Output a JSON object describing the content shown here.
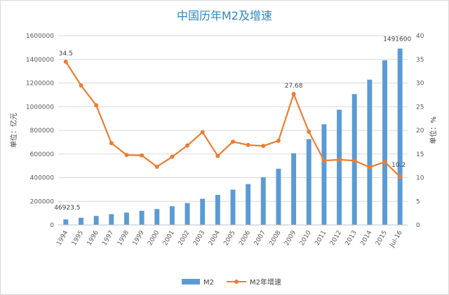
{
  "chart_data": {
    "type": "bar+line",
    "title": "中国历年M2及增速",
    "categories": [
      "1994",
      "1995",
      "1996",
      "1997",
      "1998",
      "1999",
      "2000",
      "2001",
      "2002",
      "2003",
      "2004",
      "2005",
      "2006",
      "2007",
      "2008",
      "2009",
      "2010",
      "2011",
      "2012",
      "2013",
      "2014",
      "2015",
      "Jul-16"
    ],
    "series": [
      {
        "name": "M2",
        "type": "bar",
        "axis": "left",
        "color": "#5b9bd5",
        "values": [
          46923.5,
          60750,
          76095,
          90995,
          104499,
          119898,
          134610,
          158302,
          185007,
          221223,
          254107,
          298756,
          345578,
          403442,
          475167,
          606225,
          725852,
          851591,
          974149,
          1106525,
          1228375,
          1392278,
          1491600
        ]
      },
      {
        "name": "M2年增速",
        "type": "line",
        "axis": "right",
        "color": "#ed7d31",
        "values": [
          34.5,
          29.5,
          25.3,
          17.3,
          14.8,
          14.7,
          12.3,
          14.4,
          16.8,
          19.6,
          14.6,
          17.6,
          16.9,
          16.7,
          17.8,
          27.68,
          19.7,
          13.6,
          13.8,
          13.6,
          12.2,
          13.3,
          10.2
        ]
      }
    ],
    "y_left": {
      "label": "单位：亿元",
      "ylim": [
        0,
        1600000
      ],
      "ticks": [
        "0",
        "200000",
        "400000",
        "600000",
        "800000",
        "1000000",
        "1200000",
        "1400000",
        "1600000"
      ]
    },
    "y_right": {
      "label": "单位：%",
      "ylim": [
        0,
        40
      ],
      "ticks": [
        "0",
        "5",
        "10",
        "15",
        "20",
        "25",
        "30",
        "35",
        "40"
      ]
    },
    "grid": true,
    "legend": "bottom-center",
    "data_labels": [
      {
        "series": "M2",
        "index": 0,
        "text": "46923.5"
      },
      {
        "series": "M2",
        "index": 22,
        "text": "1491600"
      },
      {
        "series": "M2年增速",
        "index": 0,
        "text": "34.5"
      },
      {
        "series": "M2年增速",
        "index": 15,
        "text": "27.68"
      },
      {
        "series": "M2年增速",
        "index": 22,
        "text": "10.2"
      }
    ]
  }
}
